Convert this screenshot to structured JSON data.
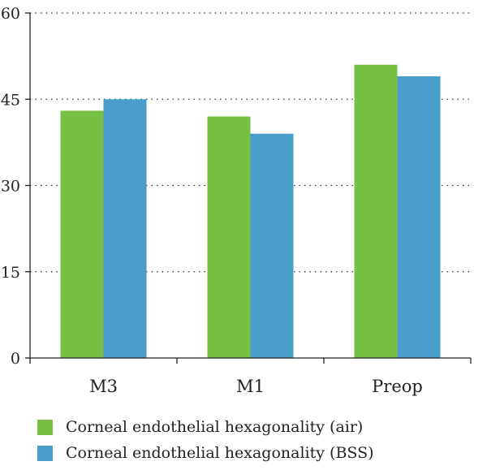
{
  "chart_data": {
    "type": "bar",
    "title": "",
    "xlabel": "",
    "ylabel": "",
    "categories": [
      "M3",
      "M1",
      "Preop"
    ],
    "series": [
      {
        "name": "Corneal endothelial hexagonality (air)",
        "values": [
          43,
          42,
          51
        ],
        "color": "#77c043"
      },
      {
        "name": "Corneal endothelial hexagonality (BSS)",
        "values": [
          45,
          39,
          49
        ],
        "color": "#489dcb"
      }
    ],
    "ylim": [
      0,
      60
    ],
    "yticks": [
      0,
      15,
      30,
      45,
      60
    ],
    "grid": "horizontal dotted",
    "legend_position": "bottom-left"
  }
}
